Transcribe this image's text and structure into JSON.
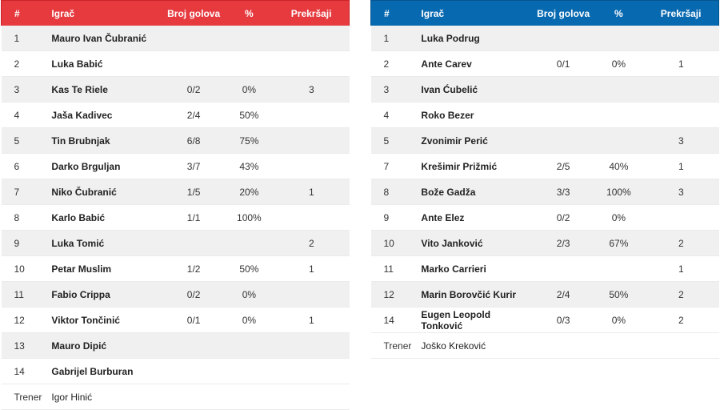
{
  "headers": {
    "num": "#",
    "player": "Igrač",
    "goals": "Broj golova",
    "pct": "%",
    "fouls": "Prekršaji"
  },
  "colors": {
    "home_header": "#e63a3f",
    "away_header": "#0769b0",
    "row_stripe": "#f0f0f0"
  },
  "home": {
    "rows": [
      {
        "num": "1",
        "name": "Mauro Ivan Čubranić",
        "goals": "",
        "pct": "",
        "fouls": ""
      },
      {
        "num": "2",
        "name": "Luka Babić",
        "goals": "",
        "pct": "",
        "fouls": ""
      },
      {
        "num": "3",
        "name": "Kas Te Riele",
        "goals": "0/2",
        "pct": "0%",
        "fouls": "3"
      },
      {
        "num": "4",
        "name": "Jaša Kadivec",
        "goals": "2/4",
        "pct": "50%",
        "fouls": ""
      },
      {
        "num": "5",
        "name": "Tin Brubnjak",
        "goals": "6/8",
        "pct": "75%",
        "fouls": ""
      },
      {
        "num": "6",
        "name": "Darko Brguljan",
        "goals": "3/7",
        "pct": "43%",
        "fouls": ""
      },
      {
        "num": "7",
        "name": "Niko Čubranić",
        "goals": "1/5",
        "pct": "20%",
        "fouls": "1"
      },
      {
        "num": "8",
        "name": "Karlo Babić",
        "goals": "1/1",
        "pct": "100%",
        "fouls": ""
      },
      {
        "num": "9",
        "name": "Luka Tomić",
        "goals": "",
        "pct": "",
        "fouls": "2"
      },
      {
        "num": "10",
        "name": "Petar Muslim",
        "goals": "1/2",
        "pct": "50%",
        "fouls": "1"
      },
      {
        "num": "11",
        "name": "Fabio Crippa",
        "goals": "0/2",
        "pct": "0%",
        "fouls": ""
      },
      {
        "num": "12",
        "name": "Viktor Tončinić",
        "goals": "0/1",
        "pct": "0%",
        "fouls": "1"
      },
      {
        "num": "13",
        "name": "Mauro Dipić",
        "goals": "",
        "pct": "",
        "fouls": ""
      },
      {
        "num": "14",
        "name": "Gabrijel Burburan",
        "goals": "",
        "pct": "",
        "fouls": ""
      }
    ],
    "coach_label": "Trener",
    "coach_name": "Igor Hinić"
  },
  "away": {
    "rows": [
      {
        "num": "1",
        "name": "Luka Podrug",
        "goals": "",
        "pct": "",
        "fouls": ""
      },
      {
        "num": "2",
        "name": "Ante Carev",
        "goals": "0/1",
        "pct": "0%",
        "fouls": "1"
      },
      {
        "num": "3",
        "name": "Ivan Ćubelić",
        "goals": "",
        "pct": "",
        "fouls": ""
      },
      {
        "num": "4",
        "name": "Roko Bezer",
        "goals": "",
        "pct": "",
        "fouls": ""
      },
      {
        "num": "5",
        "name": "Zvonimir Perić",
        "goals": "",
        "pct": "",
        "fouls": "3"
      },
      {
        "num": "7",
        "name": "Krešimir Prižmić",
        "goals": "2/5",
        "pct": "40%",
        "fouls": "1"
      },
      {
        "num": "8",
        "name": "Bože Gadža",
        "goals": "3/3",
        "pct": "100%",
        "fouls": "3"
      },
      {
        "num": "9",
        "name": "Ante Elez",
        "goals": "0/2",
        "pct": "0%",
        "fouls": ""
      },
      {
        "num": "10",
        "name": "Vito Janković",
        "goals": "2/3",
        "pct": "67%",
        "fouls": "2"
      },
      {
        "num": "11",
        "name": "Marko Carrieri",
        "goals": "",
        "pct": "",
        "fouls": "1"
      },
      {
        "num": "12",
        "name": "Marin Borovčić Kurir",
        "goals": "2/4",
        "pct": "50%",
        "fouls": "2"
      },
      {
        "num": "14",
        "name": "Eugen Leopold Tonković",
        "goals": "0/3",
        "pct": "0%",
        "fouls": "2"
      }
    ],
    "coach_label": "Trener",
    "coach_name": "Joško Kreković"
  }
}
